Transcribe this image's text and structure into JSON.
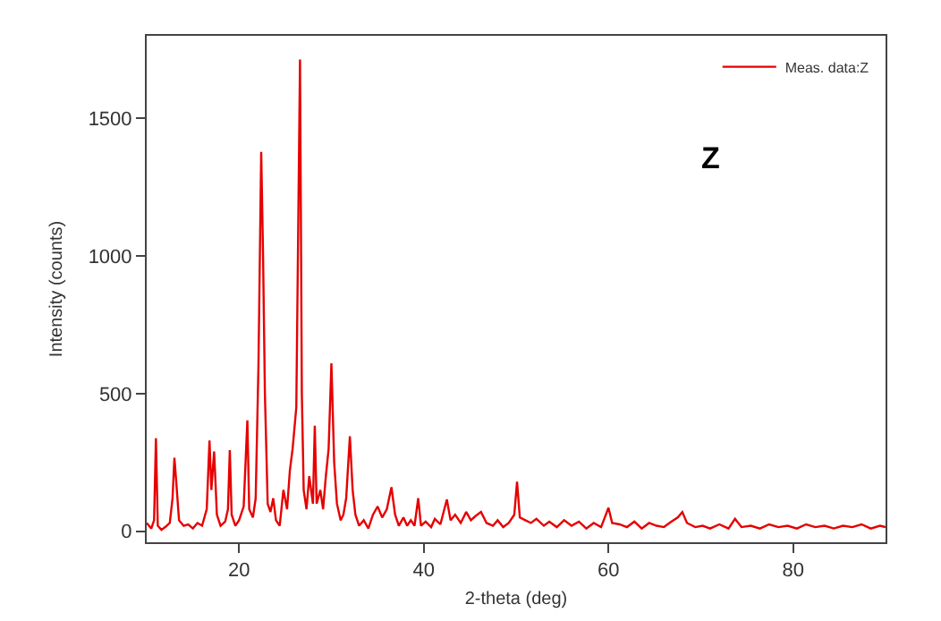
{
  "chart_data": {
    "type": "line",
    "xlabel": "2-theta (deg)",
    "ylabel": "Intensity (counts)",
    "annotations": [
      "Z"
    ],
    "xlim": [
      10,
      90
    ],
    "xticks": [
      20,
      40,
      60,
      80
    ],
    "ylim": [
      -40,
      1800
    ],
    "yticks": [
      0,
      500,
      1000,
      1500
    ],
    "grid": false,
    "legend": "top right",
    "marker": "none",
    "line_style": "solid",
    "series": [
      {
        "name": "Meas. data:Z",
        "color": "#e60000",
        "x": [
          10.0,
          10.5,
          10.8,
          11.0,
          11.2,
          11.6,
          12.0,
          12.5,
          12.8,
          13.0,
          13.2,
          13.5,
          14.0,
          14.5,
          15.0,
          15.5,
          16.0,
          16.5,
          16.8,
          17.0,
          17.3,
          17.6,
          18.0,
          18.5,
          18.8,
          19.0,
          19.2,
          19.6,
          20.0,
          20.5,
          20.9,
          21.1,
          21.5,
          21.8,
          22.1,
          22.4,
          22.6,
          22.8,
          23.1,
          23.4,
          23.7,
          24.0,
          24.4,
          24.8,
          25.2,
          25.5,
          25.8,
          26.2,
          26.6,
          26.8,
          27.0,
          27.3,
          27.6,
          28.0,
          28.2,
          28.4,
          28.8,
          29.1,
          29.4,
          29.7,
          30.0,
          30.3,
          30.6,
          31.0,
          31.3,
          31.6,
          32.0,
          32.3,
          32.6,
          33.0,
          33.5,
          34.0,
          34.5,
          35.0,
          35.5,
          36.0,
          36.5,
          36.9,
          37.3,
          37.8,
          38.2,
          38.6,
          39.0,
          39.4,
          39.7,
          40.2,
          40.8,
          41.2,
          41.8,
          42.5,
          42.9,
          43.4,
          44.0,
          44.6,
          45.1,
          45.6,
          46.2,
          46.8,
          47.5,
          48.0,
          48.6,
          49.2,
          49.8,
          50.1,
          50.4,
          51.0,
          51.6,
          52.2,
          53.0,
          53.6,
          54.4,
          55.2,
          56.0,
          56.8,
          57.6,
          58.4,
          59.2,
          60.0,
          60.4,
          61.2,
          62.0,
          62.8,
          63.6,
          64.4,
          65.2,
          66.0,
          66.8,
          67.5,
          68.0,
          68.5,
          69.4,
          70.2,
          71.0,
          72.0,
          73.0,
          73.7,
          74.4,
          75.4,
          76.4,
          77.4,
          78.4,
          79.4,
          80.4,
          81.4,
          82.4,
          83.4,
          84.4,
          85.4,
          86.4,
          87.4,
          88.4,
          89.4,
          90.0
        ],
        "values": [
          30,
          10,
          40,
          338,
          20,
          5,
          15,
          30,
          120,
          267,
          180,
          40,
          20,
          25,
          10,
          30,
          20,
          80,
          330,
          150,
          290,
          60,
          20,
          35,
          80,
          295,
          60,
          20,
          40,
          90,
          403,
          80,
          50,
          120,
          600,
          1378,
          1000,
          500,
          100,
          70,
          120,
          40,
          20,
          150,
          80,
          220,
          300,
          450,
          1714,
          500,
          150,
          80,
          200,
          100,
          383,
          100,
          150,
          80,
          200,
          300,
          610,
          250,
          100,
          40,
          60,
          120,
          345,
          150,
          60,
          20,
          40,
          10,
          60,
          90,
          50,
          80,
          160,
          60,
          20,
          50,
          20,
          40,
          20,
          120,
          20,
          35,
          15,
          45,
          25,
          115,
          40,
          60,
          30,
          70,
          40,
          55,
          70,
          30,
          20,
          40,
          15,
          30,
          60,
          180,
          50,
          40,
          30,
          45,
          20,
          35,
          15,
          40,
          20,
          35,
          10,
          30,
          15,
          85,
          30,
          25,
          15,
          35,
          10,
          30,
          20,
          15,
          35,
          50,
          70,
          30,
          15,
          20,
          10,
          25,
          10,
          45,
          15,
          20,
          10,
          25,
          15,
          20,
          10,
          25,
          15,
          20,
          10,
          20,
          15,
          25,
          10,
          20,
          15
        ]
      }
    ]
  }
}
